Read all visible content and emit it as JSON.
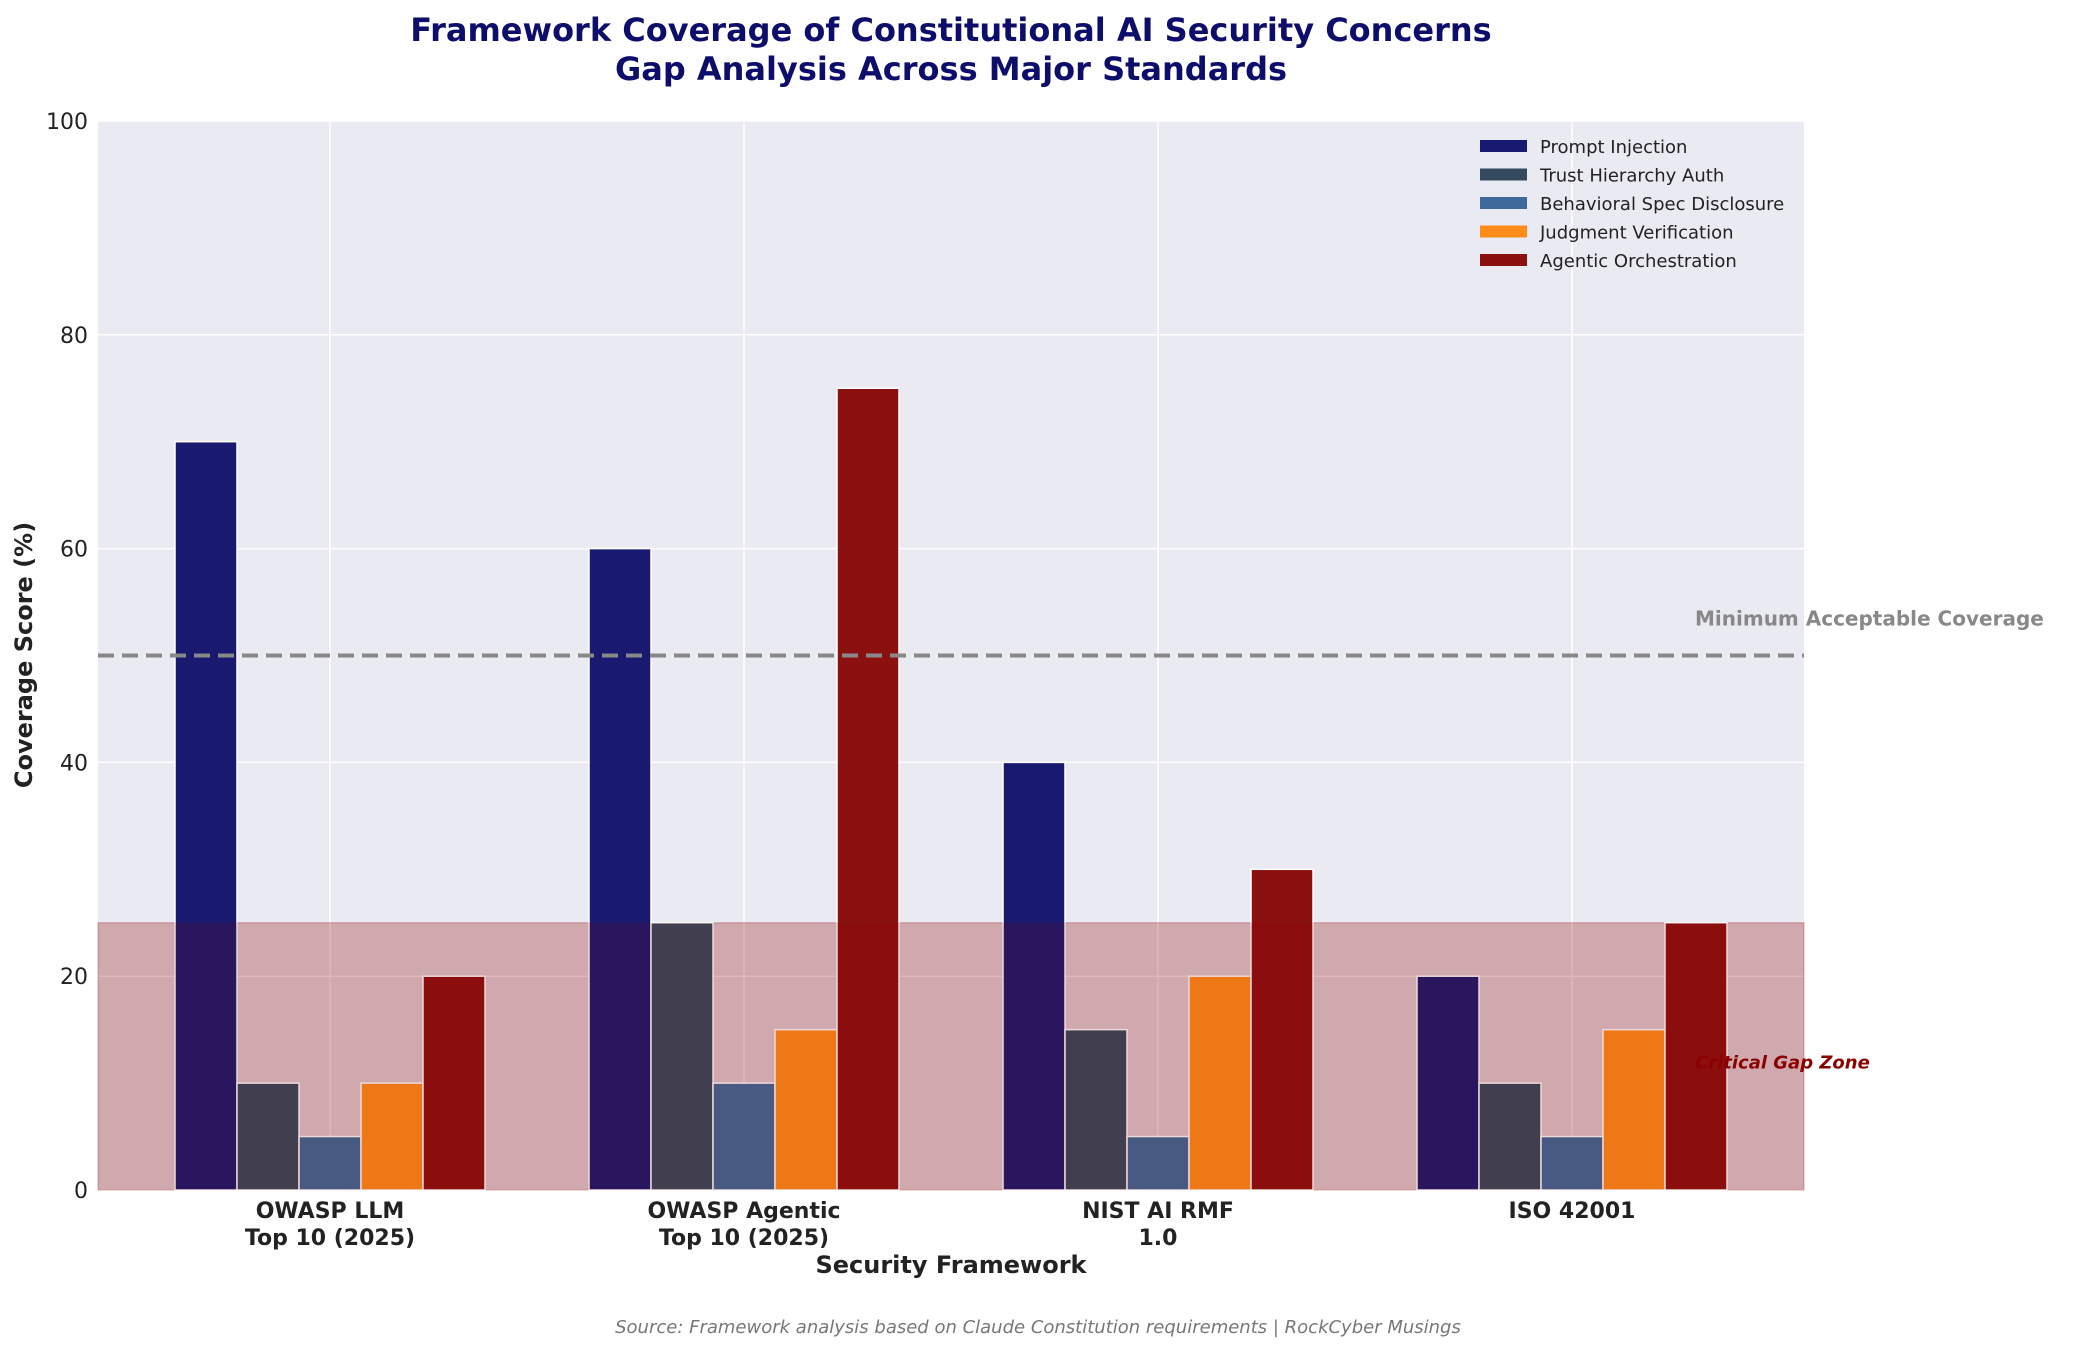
{
  "chart_data": {
    "type": "bar",
    "title": "Framework Coverage of Constitutional AI Security Concerns",
    "subtitle": "Gap Analysis Across Major Standards",
    "xlabel": "Security Framework",
    "ylabel": "Coverage Score (%)",
    "ylim": [
      0,
      100
    ],
    "yticks": [
      0,
      20,
      40,
      60,
      80,
      100
    ],
    "grid": true,
    "legend_position": "top-right",
    "categories": [
      [
        "OWASP LLM",
        "Top 10 (2025)"
      ],
      [
        "OWASP Agentic",
        "Top 10 (2025)"
      ],
      [
        "NIST AI RMF",
        "1.0"
      ],
      [
        "ISO 42001"
      ]
    ],
    "series": [
      {
        "name": "Prompt Injection",
        "color": "#191970",
        "values": [
          70,
          60,
          40,
          20
        ]
      },
      {
        "name": "Trust Hierarchy Auth",
        "color": "#34495e",
        "values": [
          10,
          25,
          15,
          10
        ]
      },
      {
        "name": "Behavioral Spec Disclosure",
        "color": "#3d6a99",
        "values": [
          5,
          10,
          5,
          5
        ]
      },
      {
        "name": "Judgment Verification",
        "color": "#ff8c1a",
        "values": [
          10,
          15,
          20,
          15
        ]
      },
      {
        "name": "Agentic Orchestration",
        "color": "#8b1010",
        "values": [
          20,
          75,
          30,
          25
        ]
      }
    ],
    "reference_line": {
      "value": 50,
      "label": "Minimum Acceptable Coverage",
      "color": "#888888"
    },
    "shaded_zone": {
      "from": 0,
      "to": 25,
      "label": "Critical Gap Zone",
      "color": "#8b0000"
    },
    "source": "Source: Framework analysis based on Claude Constitution requirements | RockCyber Musings"
  }
}
